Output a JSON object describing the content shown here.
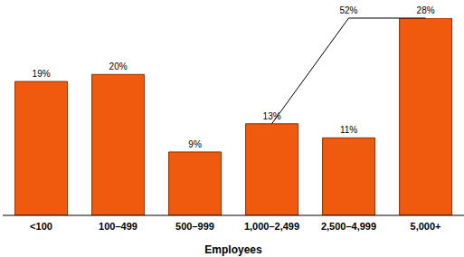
{
  "chart_data": {
    "type": "bar",
    "categories": [
      "<100",
      "100–499",
      "500–999",
      "1,000–2,499",
      "2,500–4,999",
      "5,000+"
    ],
    "values": [
      19,
      20,
      9,
      13,
      11,
      28
    ],
    "value_labels": [
      "19%",
      "20%",
      "9%",
      "13%",
      "11%",
      "28%"
    ],
    "color": "#f05a0f",
    "xlabel": "Employees",
    "ylim": [
      0,
      28
    ],
    "data_labels": true,
    "tick_labels": "x",
    "grid": false,
    "annotations": [
      {
        "text": "52%",
        "from": "1,000–2,499",
        "to": "5,000+"
      }
    ]
  }
}
